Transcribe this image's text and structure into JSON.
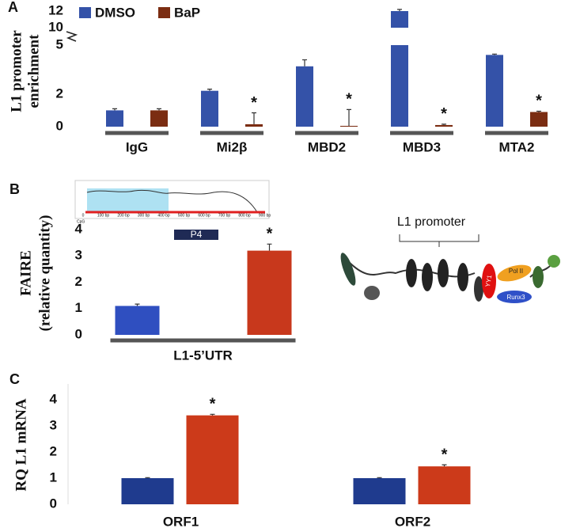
{
  "chart_data": [
    {
      "type": "bar",
      "panel": "A",
      "ylabel": [
        "L1 promoter",
        "enrichment"
      ],
      "categories": [
        "IgG",
        "Mi2β",
        "MBD2",
        "MBD3",
        "MTA2"
      ],
      "series": [
        {
          "name": "DMSO",
          "color": "#3452a8",
          "values": [
            1,
            2.2,
            3.7,
            12,
            4.4
          ],
          "errors": [
            0.1,
            0.1,
            0.4,
            0.2,
            0.05
          ]
        },
        {
          "name": "BaP",
          "color": "#7b2d12",
          "values": [
            1,
            0.15,
            0.05,
            0.1,
            0.9
          ],
          "errors": [
            0.1,
            0.7,
            1.0,
            0.05,
            0.05
          ],
          "significance": [
            null,
            "*",
            "*",
            "*",
            "*"
          ]
        }
      ],
      "ylim": [
        0,
        12
      ],
      "yticks": [
        0,
        2,
        5,
        10,
        12
      ],
      "axis_break": [
        5,
        10
      ],
      "legend": "top-left"
    },
    {
      "type": "bar",
      "panel": "B",
      "ylabel": [
        "FAIRE",
        "(relative quantity)"
      ],
      "categories": [
        "L1-5’UTR"
      ],
      "series": [
        {
          "color": "#2f4fc0",
          "values": [
            1.1
          ],
          "errors": [
            0.07
          ]
        },
        {
          "color": "#c8381c",
          "values": [
            3.2
          ],
          "errors": [
            0.25
          ],
          "significance": [
            "*"
          ]
        }
      ],
      "ylim": [
        0,
        4
      ],
      "yticks": [
        0,
        1,
        2,
        3,
        4
      ],
      "inset": {
        "xlabels": [
          "0",
          "100 bp",
          "200 bp",
          "300 bp",
          "400 bp",
          "500 bp",
          "600 bp",
          "700 bp",
          "800 bp",
          "900 bp"
        ],
        "row_label": "CpG",
        "region": "P4"
      }
    },
    {
      "type": "bar",
      "panel": "C",
      "ylabel": [
        "RQ L1 mRNA"
      ],
      "categories": [
        "ORF1",
        "ORF2"
      ],
      "series": [
        {
          "color": "#1f3b8e",
          "values": [
            1,
            1
          ],
          "errors": [
            0.02,
            0.02
          ]
        },
        {
          "color": "#cc3a1a",
          "values": [
            3.4,
            1.45
          ],
          "errors": [
            0.04,
            0.06
          ],
          "significance": [
            "*",
            "*"
          ]
        }
      ],
      "ylim": [
        0,
        4.6
      ],
      "yticks": [
        0,
        1,
        2,
        3,
        4
      ]
    }
  ],
  "diagram": {
    "title": "L1 promoter",
    "labels": [
      "YY1",
      "Pol II",
      "Runx3"
    ]
  }
}
